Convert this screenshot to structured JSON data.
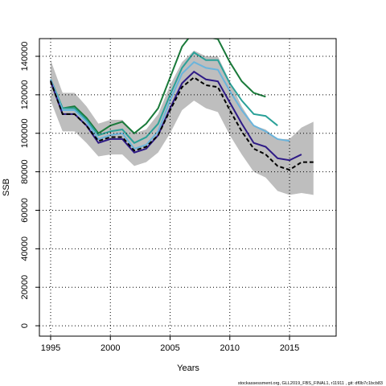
{
  "chart_data": {
    "type": "line",
    "xlabel": "Years",
    "ylabel": "SSB",
    "footnote": "stockassessment.org, GLL2019_FBS_FINAL1, r11911 , git: df0b7c1bcb83",
    "x": [
      1995,
      1996,
      1997,
      1998,
      1999,
      2000,
      2001,
      2002,
      2003,
      2004,
      2005,
      2006,
      2007,
      2008,
      2009,
      2010,
      2011,
      2012,
      2013,
      2014,
      2015,
      2016,
      2017
    ],
    "band": {
      "color": "#bebebe",
      "lower": [
        117000,
        101000,
        101000,
        95000,
        88000,
        89000,
        89000,
        83000,
        85000,
        90000,
        100000,
        112000,
        117000,
        113000,
        111000,
        99000,
        89000,
        80000,
        77000,
        70000,
        68000,
        69000,
        68000
      ],
      "upper": [
        138000,
        121000,
        121000,
        114000,
        105000,
        107000,
        107000,
        100000,
        102000,
        110000,
        125000,
        137000,
        143000,
        140000,
        140000,
        127000,
        114000,
        104000,
        102000,
        97000,
        97000,
        103000,
        106000
      ]
    },
    "series": [
      {
        "color": "#1a7a3a",
        "values": [
          128000,
          113000,
          114000,
          108000,
          100000,
          104000,
          106000,
          100000,
          105000,
          113000,
          129000,
          145000,
          153000,
          150000,
          149000,
          137000,
          127000,
          121000,
          119000,
          null,
          null,
          null,
          null
        ]
      },
      {
        "color": "#2aa198",
        "values": [
          128000,
          113000,
          113000,
          107000,
          99000,
          101000,
          102000,
          95000,
          98000,
          105000,
          120000,
          134000,
          142000,
          138000,
          138000,
          126000,
          117000,
          110000,
          109000,
          104000,
          null,
          null,
          null
        ]
      },
      {
        "color": "#6ab4dc",
        "values": [
          128000,
          112000,
          112000,
          106000,
          97000,
          99000,
          100000,
          92000,
          94000,
          101000,
          117000,
          131000,
          137000,
          134000,
          133000,
          122000,
          112000,
          104000,
          101000,
          97000,
          96000,
          null,
          null
        ]
      },
      {
        "color": "#2e1a86",
        "values": [
          127000,
          110000,
          110000,
          104000,
          95000,
          97000,
          97000,
          90000,
          92000,
          99000,
          113000,
          126000,
          132000,
          128000,
          127000,
          116000,
          105000,
          95000,
          93000,
          87000,
          86000,
          89000,
          null
        ]
      },
      {
        "color": "#000000",
        "dashed": true,
        "values": [
          127000,
          110000,
          110000,
          104000,
          96000,
          98000,
          98000,
          91000,
          93000,
          99000,
          112000,
          124000,
          129000,
          125000,
          124000,
          112000,
          101000,
          92000,
          89000,
          83000,
          81000,
          85000,
          85000
        ]
      }
    ],
    "xlim": [
      1994.06,
      2018.9
    ],
    "ylim": [
      -5400,
      149200
    ],
    "xticks": [
      1995,
      2000,
      2005,
      2010,
      2015
    ],
    "yticks": [
      0,
      20000,
      40000,
      60000,
      80000,
      100000,
      120000,
      140000
    ],
    "grid": true
  }
}
